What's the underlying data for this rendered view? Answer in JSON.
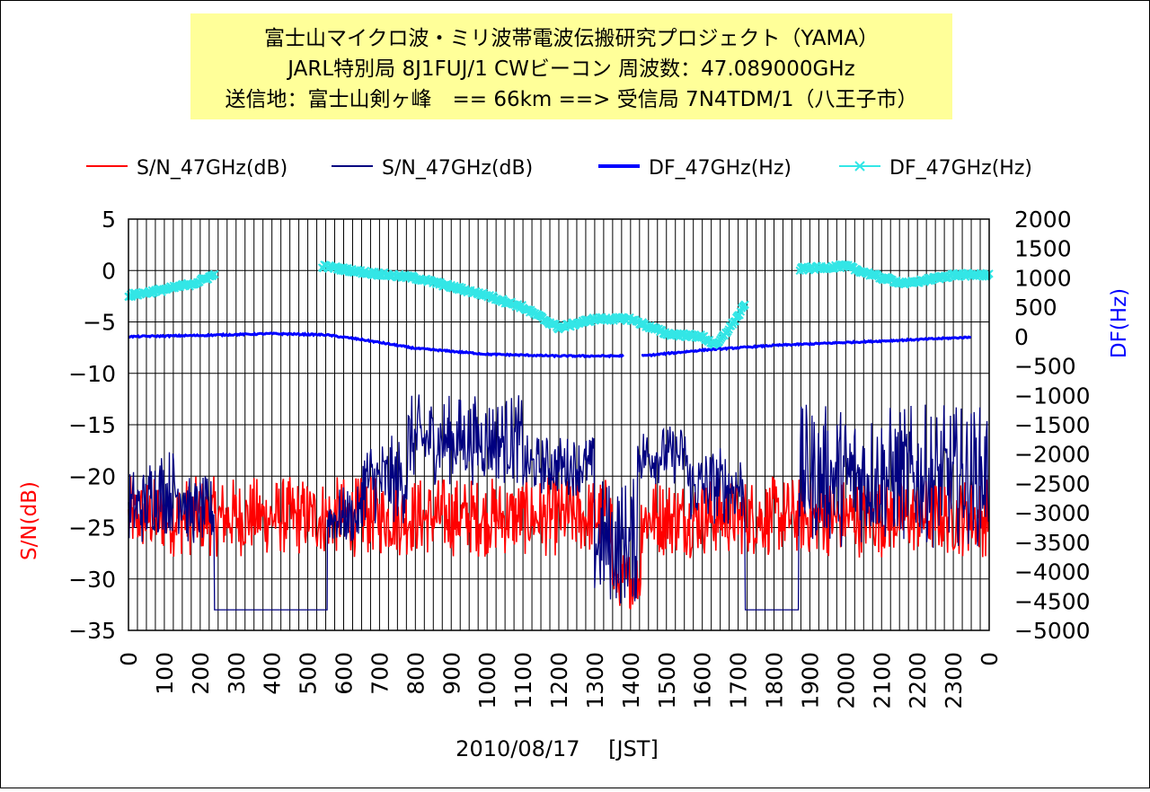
{
  "chart_data": {
    "type": "line",
    "title_lines": [
      "富士山マイクロ波・ミリ波帯電波伝搬研究プロジェクト（YAMA）",
      "JARL特別局 8J1FUJ/1 CWビーコン 周波数：47.089000GHz",
      "送信地：富士山剣ヶ峰　== 66km ==> 受信局 7N4TDM/1（八王子市）"
    ],
    "xlabel": "2010/08/17　 [JST]",
    "ylabel_left": "S/N(dB)",
    "ylabel_right": "DF(Hz)",
    "x_tick_labels": [
      "0",
      "100",
      "200",
      "300",
      "400",
      "500",
      "600",
      "700",
      "800",
      "900",
      "1000",
      "1100",
      "1200",
      "1300",
      "1400",
      "1500",
      "1600",
      "1700",
      "1800",
      "1900",
      "2000",
      "2100",
      "2200",
      "2300",
      "0"
    ],
    "xlim": [
      0,
      2400
    ],
    "ylim_left": [
      -35,
      5
    ],
    "ylim_right": [
      -5000,
      2000
    ],
    "yticks_left": [
      5,
      0,
      -5,
      -10,
      -15,
      -20,
      -25,
      -30,
      -35
    ],
    "yticks_right": [
      2000,
      1500,
      1000,
      500,
      0,
      -500,
      -1000,
      -1500,
      -2000,
      -2500,
      -3000,
      -3500,
      -4000,
      -4500,
      -5000
    ],
    "grid": true,
    "legend_position": "top",
    "legend": [
      {
        "label": "S/N_47GHz(dB)",
        "color": "#ff0000",
        "style": "line"
      },
      {
        "label": "S/N_47GHz(dB)",
        "color": "#000080",
        "style": "line"
      },
      {
        "label": "DF_47GHz(Hz)",
        "color": "#0000ff",
        "style": "thick-line"
      },
      {
        "label": "DF_47GHz(Hz)",
        "color": "#33e6e6",
        "style": "x-marker"
      }
    ],
    "series": [
      {
        "name": "S/N_47GHz(dB)",
        "axis": "left",
        "color": "#ff0000",
        "render": "noisy_band",
        "segments": [
          {
            "x_start": 0,
            "x_end": 1350,
            "band": [
              -28,
              -20
            ]
          },
          {
            "x_start": 1350,
            "x_end": 1430,
            "band": [
              -33,
              -27
            ]
          },
          {
            "x_start": 1430,
            "x_end": 2400,
            "band": [
              -28,
              -20
            ]
          }
        ]
      },
      {
        "name": "S/N_47GHz(dB)",
        "axis": "left",
        "color": "#000080",
        "render": "noisy_band",
        "segments": [
          {
            "x_start": 0,
            "x_end": 60,
            "band": [
              -27,
              -19
            ]
          },
          {
            "x_start": 60,
            "x_end": 160,
            "band": [
              -26,
              -17
            ]
          },
          {
            "x_start": 160,
            "x_end": 240,
            "band": [
              -27,
              -20
            ]
          },
          {
            "x_start": 240,
            "x_end": 555,
            "band": [
              -33,
              -33
            ]
          },
          {
            "x_start": 555,
            "x_end": 650,
            "band": [
              -27,
              -21
            ]
          },
          {
            "x_start": 650,
            "x_end": 780,
            "band": [
              -25,
              -16
            ]
          },
          {
            "x_start": 780,
            "x_end": 1100,
            "band": [
              -21,
              -12
            ]
          },
          {
            "x_start": 1100,
            "x_end": 1300,
            "band": [
              -22,
              -16
            ]
          },
          {
            "x_start": 1300,
            "x_end": 1420,
            "band": [
              -33,
              -20
            ]
          },
          {
            "x_start": 1420,
            "x_end": 1560,
            "band": [
              -21,
              -15
            ]
          },
          {
            "x_start": 1560,
            "x_end": 1720,
            "band": [
              -25,
              -17
            ]
          },
          {
            "x_start": 1720,
            "x_end": 1870,
            "band": [
              -33,
              -33
            ]
          },
          {
            "x_start": 1870,
            "x_end": 2400,
            "band": [
              -27,
              -13
            ]
          }
        ]
      },
      {
        "name": "DF_47GHz(Hz)",
        "axis": "right",
        "color": "#0000ff",
        "render": "thick_line",
        "points": [
          {
            "x": 0,
            "y": 0
          },
          {
            "x": 200,
            "y": 20
          },
          {
            "x": 400,
            "y": 50
          },
          {
            "x": 550,
            "y": 30
          },
          {
            "x": 650,
            "y": -50
          },
          {
            "x": 800,
            "y": -200
          },
          {
            "x": 1000,
            "y": -300
          },
          {
            "x": 1200,
            "y": -330
          },
          {
            "x": 1380,
            "y": -330
          },
          {
            "x": 1430,
            "y": -330
          },
          {
            "x": 1600,
            "y": -230
          },
          {
            "x": 1800,
            "y": -150
          },
          {
            "x": 2000,
            "y": -100
          },
          {
            "x": 2200,
            "y": -50
          },
          {
            "x": 2350,
            "y": -10
          }
        ],
        "gaps": [
          [
            1380,
            1430
          ]
        ]
      },
      {
        "name": "DF_47GHz(Hz)",
        "axis": "right",
        "color": "#33e6e6",
        "render": "x_markers",
        "points": [
          {
            "x": 0,
            "y": 700
          },
          {
            "x": 100,
            "y": 800
          },
          {
            "x": 180,
            "y": 900
          },
          {
            "x": 240,
            "y": 1050
          },
          {
            "x": 540,
            "y": 1200
          },
          {
            "x": 650,
            "y": 1100
          },
          {
            "x": 800,
            "y": 1000
          },
          {
            "x": 1000,
            "y": 700
          },
          {
            "x": 1100,
            "y": 500
          },
          {
            "x": 1200,
            "y": 150
          },
          {
            "x": 1300,
            "y": 300
          },
          {
            "x": 1400,
            "y": 300
          },
          {
            "x": 1500,
            "y": 50
          },
          {
            "x": 1600,
            "y": 0
          },
          {
            "x": 1640,
            "y": -150
          },
          {
            "x": 1700,
            "y": 350
          },
          {
            "x": 1720,
            "y": 550
          },
          {
            "x": 1870,
            "y": 1150
          },
          {
            "x": 2000,
            "y": 1200
          },
          {
            "x": 2100,
            "y": 1000
          },
          {
            "x": 2170,
            "y": 900
          },
          {
            "x": 2300,
            "y": 1050
          },
          {
            "x": 2400,
            "y": 1050
          }
        ],
        "gaps": [
          [
            240,
            540
          ],
          [
            1720,
            1870
          ]
        ]
      }
    ]
  }
}
